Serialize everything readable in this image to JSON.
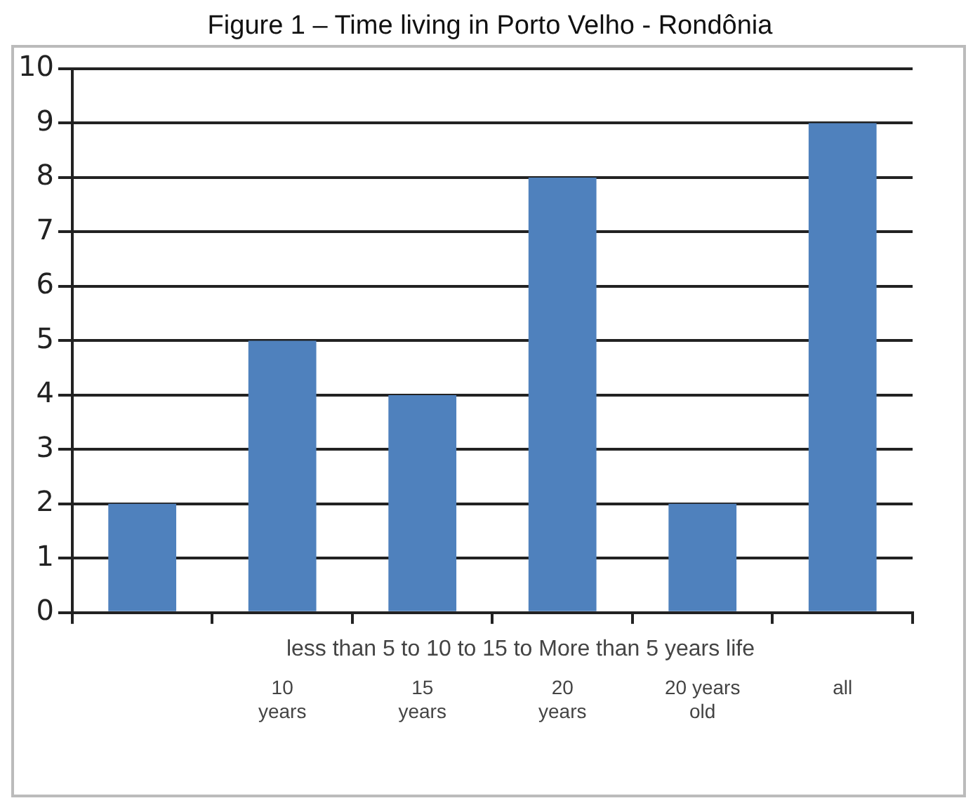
{
  "chart_data": {
    "type": "bar",
    "title": "Figure 1 – Time living in Porto Velho - Rondônia",
    "categories": [
      null,
      "10 years",
      "15 years",
      "20 years",
      "20 years old",
      "all"
    ],
    "values": [
      2,
      5,
      4,
      8,
      2,
      9
    ],
    "color": "#4f81bd",
    "ylim": [
      0,
      10
    ],
    "yticks": [
      0,
      1,
      2,
      3,
      4,
      5,
      6,
      7,
      8,
      9,
      10
    ],
    "grid": "y",
    "annotations": [
      "less than 5 to 10 to 15 to More than 5 years life"
    ]
  }
}
